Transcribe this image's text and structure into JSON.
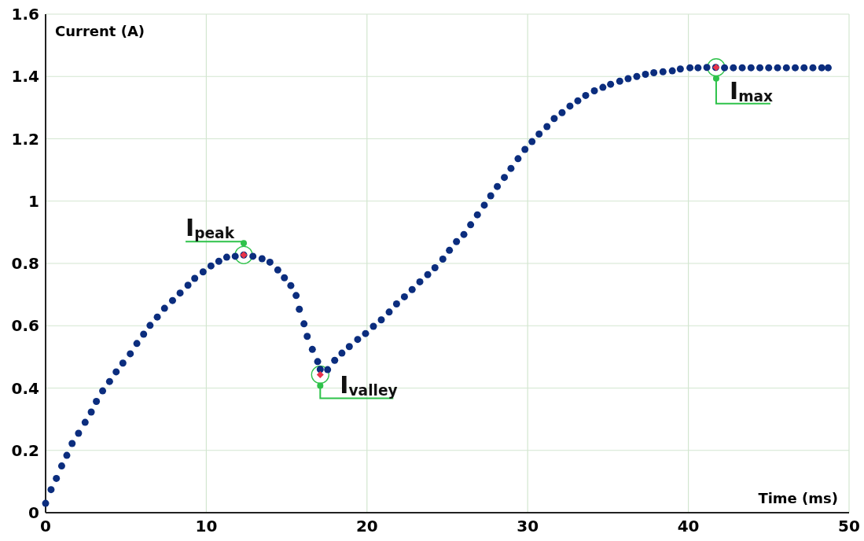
{
  "chart_data": {
    "type": "scatter",
    "xlabel": "Time (ms)",
    "ylabel": "Current (A)",
    "xlim": [
      0,
      50
    ],
    "ylim": [
      0,
      1.6
    ],
    "xticks": [
      0,
      10,
      20,
      30,
      40,
      50
    ],
    "yticks": [
      0,
      0.2,
      0.4,
      0.6,
      0.8,
      1,
      1.2,
      1.4,
      1.6
    ],
    "grid": true,
    "marker": "circle",
    "series": [
      {
        "color": "#0b2d7e",
        "x": [
          0,
          0.34,
          0.67,
          1.0,
          1.32,
          1.65,
          2.05,
          2.46,
          2.84,
          3.16,
          3.55,
          3.98,
          4.39,
          4.81,
          5.27,
          5.68,
          6.1,
          6.5,
          6.95,
          7.4,
          7.9,
          8.37,
          8.86,
          9.28,
          9.8,
          10.29,
          10.78,
          11.27,
          11.8,
          12.33,
          12.9,
          13.47,
          13.96,
          14.45,
          14.86,
          15.26,
          15.59,
          15.79,
          16.08,
          16.28,
          16.6,
          16.93,
          17.09,
          17.55,
          17.99,
          18.44,
          18.9,
          19.42,
          19.91,
          20.4,
          20.89,
          21.38,
          21.84,
          22.33,
          22.81,
          23.29,
          23.78,
          24.23,
          24.72,
          25.13,
          25.57,
          26.03,
          26.45,
          26.87,
          27.3,
          27.7,
          28.11,
          28.55,
          28.96,
          29.4,
          29.83,
          30.27,
          30.71,
          31.2,
          31.65,
          32.14,
          32.63,
          33.12,
          33.61,
          34.15,
          34.68,
          35.16,
          35.73,
          36.25,
          36.79,
          37.33,
          37.85,
          38.42,
          39.0,
          39.5,
          40.1,
          40.6,
          41.15,
          41.7,
          42.25,
          42.8,
          43.35,
          43.9,
          44.45,
          45.0,
          45.55,
          46.1,
          46.65,
          47.2,
          47.75,
          48.3,
          48.7
        ],
        "values": [
          0.03,
          0.074,
          0.11,
          0.15,
          0.184,
          0.222,
          0.255,
          0.29,
          0.323,
          0.357,
          0.391,
          0.421,
          0.452,
          0.48,
          0.51,
          0.543,
          0.573,
          0.601,
          0.628,
          0.656,
          0.681,
          0.705,
          0.73,
          0.752,
          0.773,
          0.792,
          0.807,
          0.82,
          0.823,
          0.827,
          0.823,
          0.815,
          0.804,
          0.779,
          0.754,
          0.729,
          0.697,
          0.653,
          0.606,
          0.566,
          0.524,
          0.485,
          0.46,
          0.459,
          0.489,
          0.512,
          0.533,
          0.556,
          0.575,
          0.598,
          0.619,
          0.644,
          0.67,
          0.693,
          0.716,
          0.741,
          0.764,
          0.786,
          0.814,
          0.842,
          0.87,
          0.893,
          0.924,
          0.956,
          0.987,
          1.017,
          1.047,
          1.076,
          1.105,
          1.136,
          1.166,
          1.191,
          1.215,
          1.239,
          1.265,
          1.284,
          1.305,
          1.322,
          1.339,
          1.354,
          1.365,
          1.375,
          1.385,
          1.393,
          1.4,
          1.407,
          1.412,
          1.415,
          1.418,
          1.424,
          1.428,
          1.428,
          1.429,
          1.429,
          1.428,
          1.428,
          1.428,
          1.428,
          1.428,
          1.428,
          1.428,
          1.428,
          1.428,
          1.428,
          1.428,
          1.428,
          1.428
        ]
      },
      {
        "color": "#e8334a",
        "marker": "diamond",
        "x": [
          12.33,
          17.09,
          41.73
        ],
        "values": [
          0.827,
          0.443,
          1.429
        ]
      }
    ],
    "annotations": [
      {
        "text": "I$_{peak}$",
        "x": 12.33,
        "y": 0.827
      },
      {
        "text": "I$_{valley}$",
        "x": 17.09,
        "y": 0.443
      },
      {
        "text": "I$_{max}$",
        "x": 41.73,
        "y": 1.429
      }
    ]
  }
}
